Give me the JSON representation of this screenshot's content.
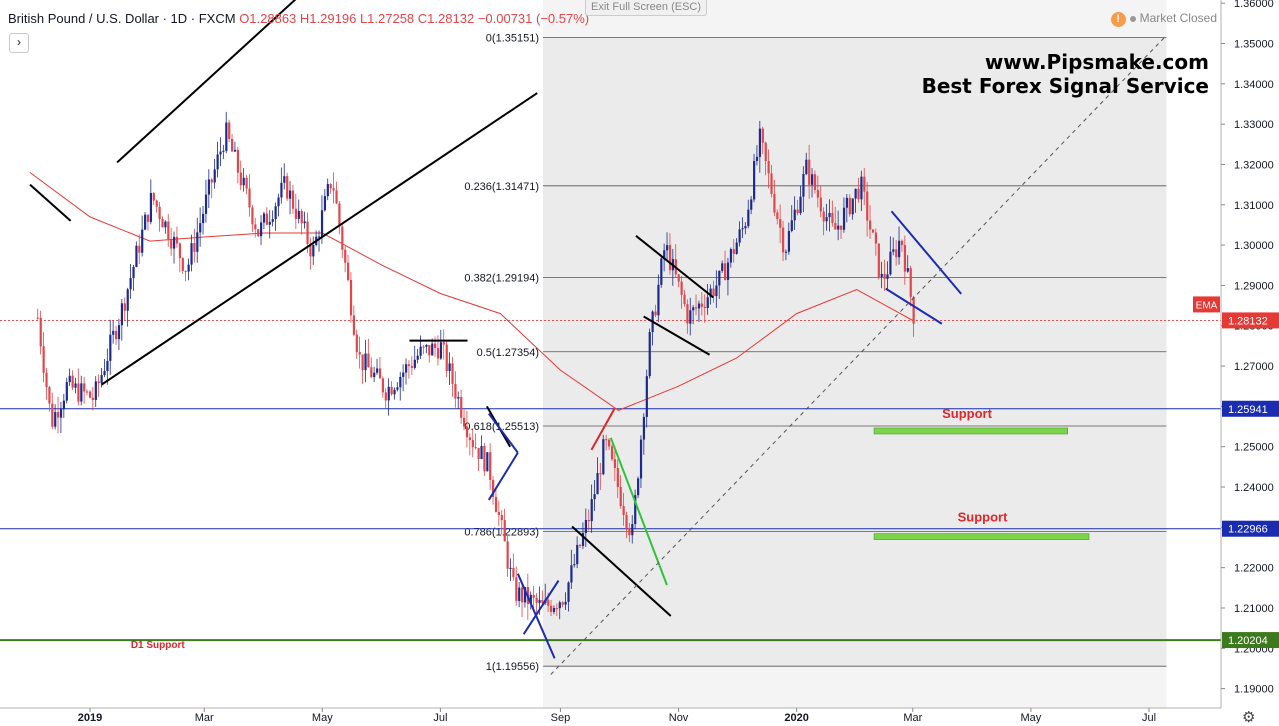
{
  "header": {
    "symbol": "British Pound / U.S. Dollar · 1D · FXCM",
    "open": "O1.28863",
    "high": "H1.29196",
    "low": "L1.27258",
    "close": "C1.28132",
    "change": "−0.00731 (−0.57%)",
    "exit_fullscreen": "Exit Full Screen (ESC)",
    "collapse_glyph": "›",
    "market_status": "Market Closed",
    "warn_glyph": "!"
  },
  "watermark": {
    "line1": "www.Pipsmake.com",
    "line2": "Best Forex Signal Service"
  },
  "colors": {
    "up": "#1b2a8c",
    "down": "#e0464a",
    "ema": "#e53935",
    "support_line": "#1a2cb0",
    "d1_line": "#3d7a1e",
    "fib_shade": "#ebebeb",
    "support_bar": "#7bd44a",
    "text_red": "#e0262a"
  },
  "chart_data": {
    "type": "candlestick",
    "symbol": "GBPUSD",
    "timeframe": "1D",
    "y_axis": {
      "range": [
        1.186,
        1.362
      ],
      "ticks": [
        "1.19000",
        "1.20000",
        "1.21000",
        "1.22000",
        "1.23000",
        "1.24000",
        "1.25000",
        "1.26000",
        "1.27000",
        "1.28000",
        "1.29000",
        "1.30000",
        "1.31000",
        "1.32000",
        "1.33000",
        "1.34000",
        "1.35000",
        "1.36000"
      ]
    },
    "x_axis": {
      "labels": [
        {
          "text": "2019",
          "date": "2019-01-01",
          "bold": true
        },
        {
          "text": "Mar",
          "date": "2019-03-01",
          "bold": false
        },
        {
          "text": "May",
          "date": "2019-05-01",
          "bold": false
        },
        {
          "text": "Jul",
          "date": "2019-07-01",
          "bold": false
        },
        {
          "text": "Sep",
          "date": "2019-09-01",
          "bold": false
        },
        {
          "text": "Nov",
          "date": "2019-11-01",
          "bold": false
        },
        {
          "text": "2020",
          "date": "2020-01-01",
          "bold": true
        },
        {
          "text": "Mar",
          "date": "2020-03-01",
          "bold": false
        },
        {
          "text": "May",
          "date": "2020-05-01",
          "bold": false
        },
        {
          "text": "Jul",
          "date": "2020-07-01",
          "bold": false
        }
      ]
    },
    "price_path": [
      {
        "date": "2018-12-05",
        "price": 1.282
      },
      {
        "date": "2018-12-12",
        "price": 1.256
      },
      {
        "date": "2018-12-20",
        "price": 1.265
      },
      {
        "date": "2019-01-03",
        "price": 1.262
      },
      {
        "date": "2019-01-18",
        "price": 1.285
      },
      {
        "date": "2019-02-02",
        "price": 1.312
      },
      {
        "date": "2019-02-20",
        "price": 1.294
      },
      {
        "date": "2019-03-12",
        "price": 1.328
      },
      {
        "date": "2019-03-29",
        "price": 1.303
      },
      {
        "date": "2019-04-12",
        "price": 1.315
      },
      {
        "date": "2019-04-26",
        "price": 1.298
      },
      {
        "date": "2019-05-06",
        "price": 1.317
      },
      {
        "date": "2019-05-20",
        "price": 1.272
      },
      {
        "date": "2019-06-03",
        "price": 1.264
      },
      {
        "date": "2019-06-20",
        "price": 1.273
      },
      {
        "date": "2019-07-01",
        "price": 1.275
      },
      {
        "date": "2019-07-17",
        "price": 1.252
      },
      {
        "date": "2019-07-26",
        "price": 1.245
      },
      {
        "date": "2019-08-08",
        "price": 1.214
      },
      {
        "date": "2019-08-23",
        "price": 1.21
      },
      {
        "date": "2019-09-03",
        "price": 1.213
      },
      {
        "date": "2019-09-16",
        "price": 1.233
      },
      {
        "date": "2019-09-24",
        "price": 1.251
      },
      {
        "date": "2019-10-08",
        "price": 1.228
      },
      {
        "date": "2019-10-17",
        "price": 1.276
      },
      {
        "date": "2019-10-25",
        "price": 1.3
      },
      {
        "date": "2019-11-06",
        "price": 1.282
      },
      {
        "date": "2019-11-22",
        "price": 1.291
      },
      {
        "date": "2019-12-05",
        "price": 1.305
      },
      {
        "date": "2019-12-13",
        "price": 1.326
      },
      {
        "date": "2019-12-26",
        "price": 1.299
      },
      {
        "date": "2020-01-06",
        "price": 1.319
      },
      {
        "date": "2020-01-20",
        "price": 1.303
      },
      {
        "date": "2020-02-03",
        "price": 1.315
      },
      {
        "date": "2020-02-14",
        "price": 1.291
      },
      {
        "date": "2020-02-24",
        "price": 1.302
      },
      {
        "date": "2020-03-02",
        "price": 1.281
      }
    ],
    "ema_path": [
      {
        "date": "2018-12-01",
        "price": 1.318
      },
      {
        "date": "2019-01-01",
        "price": 1.307
      },
      {
        "date": "2019-02-01",
        "price": 1.301
      },
      {
        "date": "2019-03-01",
        "price": 1.302
      },
      {
        "date": "2019-04-01",
        "price": 1.303
      },
      {
        "date": "2019-05-01",
        "price": 1.303
      },
      {
        "date": "2019-06-01",
        "price": 1.295
      },
      {
        "date": "2019-07-01",
        "price": 1.288
      },
      {
        "date": "2019-08-01",
        "price": 1.283
      },
      {
        "date": "2019-09-01",
        "price": 1.269
      },
      {
        "date": "2019-10-01",
        "price": 1.259
      },
      {
        "date": "2019-11-01",
        "price": 1.265
      },
      {
        "date": "2019-12-01",
        "price": 1.272
      },
      {
        "date": "2020-01-01",
        "price": 1.283
      },
      {
        "date": "2020-02-01",
        "price": 1.289
      },
      {
        "date": "2020-03-01",
        "price": 1.2813
      }
    ],
    "fibonacci": {
      "start_date": "2019-08-23",
      "end_date": "2020-07-10",
      "levels": [
        {
          "label": "0(1.35151)",
          "price": 1.35151
        },
        {
          "label": "0.236(1.31471)",
          "price": 1.31471
        },
        {
          "label": "0.382(1.29194)",
          "price": 1.29194
        },
        {
          "label": "0.5(1.27354)",
          "price": 1.27354
        },
        {
          "label": "0.618(1.25513)",
          "price": 1.25513
        },
        {
          "label": "0.786(1.22893)",
          "price": 1.22893
        },
        {
          "label": "1(1.19556)",
          "price": 1.19556
        }
      ]
    },
    "horizontal_levels": [
      {
        "price": 1.25941,
        "label": "1.25941",
        "kind": "support"
      },
      {
        "price": 1.22966,
        "label": "1.22966",
        "kind": "support"
      },
      {
        "price": 1.20204,
        "label": "1.20204",
        "kind": "d1"
      }
    ],
    "current_price": {
      "price": 1.28132,
      "label": "1.28132"
    },
    "ema_label": "EMA",
    "annotations": [
      {
        "text": "Support",
        "date": "2020-03-29",
        "price": 1.2571
      },
      {
        "text": "Support",
        "date": "2020-04-06",
        "price": 1.2315
      },
      {
        "text": "D1 Support",
        "date": "2019-02-05",
        "price": 1.2001
      }
    ],
    "support_zones": [
      {
        "from": "2020-02-10",
        "to": "2020-05-20",
        "price": 1.2539
      },
      {
        "from": "2020-02-10",
        "to": "2020-05-31",
        "price": 1.2277
      }
    ],
    "trendlines": [
      {
        "from": [
          "2019-01-15",
          1.3205
        ],
        "to": [
          "2019-04-20",
          1.3622
        ],
        "color": "#000000"
      },
      {
        "from": [
          "2018-12-01",
          1.315
        ],
        "to": [
          "2018-12-22",
          1.306
        ],
        "color": "#000000"
      },
      {
        "from": [
          "2019-01-07",
          1.2654
        ],
        "to": [
          "2019-08-20",
          1.3377
        ],
        "color": "#000000"
      },
      {
        "from": [
          "2019-06-15",
          1.2763
        ],
        "to": [
          "2019-07-15",
          1.2763
        ],
        "color": "#000000"
      },
      {
        "from": [
          "2019-07-25",
          1.26
        ],
        "to": [
          "2019-08-06",
          1.25
        ],
        "color": "#000000"
      },
      {
        "from": [
          "2019-09-07",
          1.2302
        ],
        "to": [
          "2019-10-28",
          1.208
        ],
        "color": "#000000"
      },
      {
        "from": [
          "2019-10-10",
          1.3023
        ],
        "to": [
          "2019-11-19",
          1.287
        ],
        "color": "#000000"
      },
      {
        "from": [
          "2019-10-14",
          1.2823
        ],
        "to": [
          "2019-11-17",
          1.2728
        ],
        "color": "#000000"
      },
      {
        "from": [
          "2019-07-26",
          1.2582
        ],
        "to": [
          "2019-08-10",
          1.2485
        ],
        "color": "#1a2cb0"
      },
      {
        "from": [
          "2019-07-26",
          1.2368
        ],
        "to": [
          "2019-08-10",
          1.2485
        ],
        "color": "#1a2cb0"
      },
      {
        "from": [
          "2019-08-10",
          1.2185
        ],
        "to": [
          "2019-08-29",
          1.1975
        ],
        "color": "#1a2cb0"
      },
      {
        "from": [
          "2019-08-13",
          1.2035
        ],
        "to": [
          "2019-08-31",
          1.2168
        ],
        "color": "#1a2cb0"
      },
      {
        "from": [
          "2020-02-19",
          1.3084
        ],
        "to": [
          "2020-03-26",
          1.2879
        ],
        "color": "#1a2cb0"
      },
      {
        "from": [
          "2020-02-16",
          1.2892
        ],
        "to": [
          "2020-03-16",
          1.2805
        ],
        "color": "#1a2cb0"
      },
      {
        "from": [
          "2019-09-17",
          1.2492
        ],
        "to": [
          "2019-09-29",
          1.2595
        ],
        "color": "#e0262a"
      },
      {
        "from": [
          "2019-09-27",
          1.2522
        ],
        "to": [
          "2019-10-26",
          1.2157
        ],
        "color": "#2ec43a"
      },
      {
        "from": [
          "2019-08-27",
          1.1935
        ],
        "to": [
          "2020-07-10",
          1.352
        ],
        "color": "#555555",
        "dashed": true
      }
    ]
  }
}
